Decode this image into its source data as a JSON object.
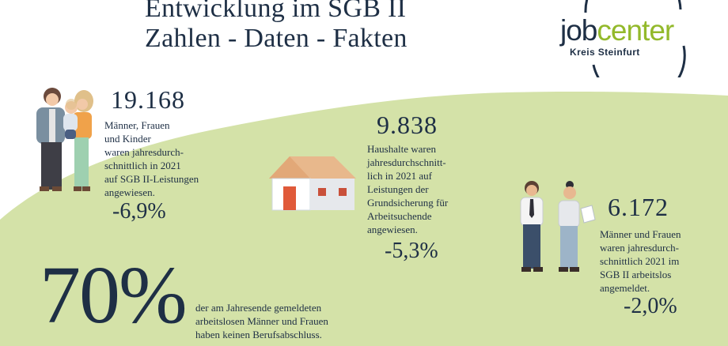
{
  "title": {
    "line1": "Entwicklung im SGB II",
    "line2": "Zahlen - Daten - Fakten"
  },
  "logo": {
    "part1": "job",
    "part2": "center",
    "sub": "Kreis Steinfurt"
  },
  "colors": {
    "green_hill": "#d4e2a8",
    "navy": "#1e2f45",
    "logo_green": "#93b92b",
    "roof": "#e8b88c",
    "door": "#e05a3a"
  },
  "stat1": {
    "number": "19.168",
    "lines": [
      "Männer, Frauen",
      "und Kinder",
      "waren jahresdurch-",
      "schnittlich in 2021",
      "auf SGB II-Leistungen",
      "angewiesen."
    ],
    "change": "-6,9%"
  },
  "stat2": {
    "number": "9.838",
    "lines": [
      "Haushalte waren",
      "jahresdurchschnitt-",
      "lich in 2021 auf",
      "Leistungen der",
      "Grundsicherung für",
      "Arbeitsuchende",
      "angewiesen."
    ],
    "change": "-5,3%"
  },
  "stat3": {
    "number": "6.172",
    "lines": [
      "Männer und Frauen",
      "waren jahresdurch-",
      "schnittlich 2021 im",
      "SGB II arbeitslos",
      "angemeldet."
    ],
    "change": "-2,0%"
  },
  "stat4": {
    "number": "70%",
    "lines": [
      "der am Jahresende gemeldeten",
      "arbeitslosen Männer und Frauen",
      "haben keinen Berufsabschluss."
    ]
  },
  "illustrations": {
    "family": "family-illustration",
    "house": "house-illustration",
    "workers": "job-seekers-illustration"
  }
}
